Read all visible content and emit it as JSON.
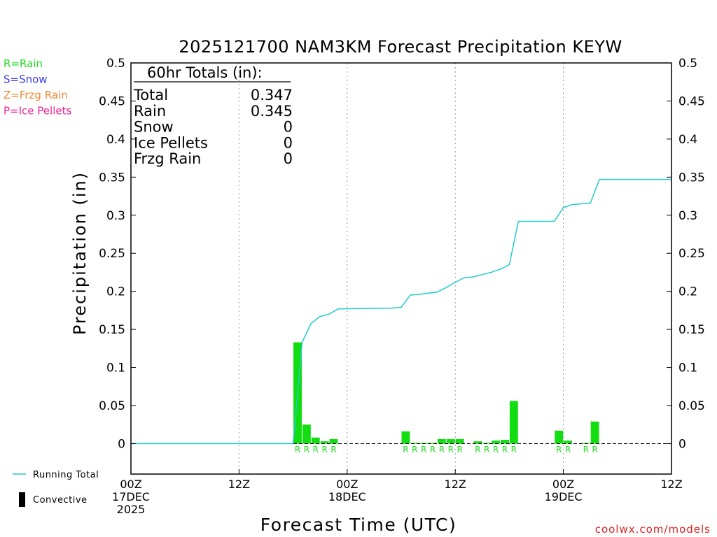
{
  "chart_data": {
    "type": "bar",
    "title": "2025121700 NAM3KM Forecast Precipitation KEYW",
    "xlabel": "Forecast Time (UTC)",
    "ylabel": "Precipitation (in)",
    "ylim": [
      -0.04,
      0.5
    ],
    "xlim_hours": [
      0,
      60
    ],
    "y_ticks": [
      "0",
      "0.05",
      "0.1",
      "0.15",
      "0.2",
      "0.25",
      "0.3",
      "0.35",
      "0.4",
      "0.45",
      "0.5"
    ],
    "y_tick_values": [
      0,
      0.05,
      0.1,
      0.15,
      0.2,
      0.25,
      0.3,
      0.35,
      0.4,
      0.45,
      0.5
    ],
    "x_ticks": [
      {
        "hour": 0,
        "lines": [
          "00Z",
          "17DEC",
          "2025"
        ]
      },
      {
        "hour": 12,
        "lines": [
          "12Z"
        ]
      },
      {
        "hour": 24,
        "lines": [
          "00Z",
          "18DEC"
        ]
      },
      {
        "hour": 36,
        "lines": [
          "12Z"
        ]
      },
      {
        "hour": 48,
        "lines": [
          "00Z",
          "19DEC"
        ]
      },
      {
        "hour": 60,
        "lines": [
          "12Z"
        ]
      }
    ],
    "grid_hours": [
      12,
      24,
      36,
      48
    ],
    "legend_types": [
      {
        "label": "R=Rain",
        "color": "#22dd22"
      },
      {
        "label": "S=Snow",
        "color": "#3a3aee"
      },
      {
        "label": "Z=Frzg Rain",
        "color": "#ee8833"
      },
      {
        "label": "P=Ice Pellets",
        "color": "#ee2299"
      }
    ],
    "legend_series": [
      {
        "label": "Running Total",
        "kind": "line",
        "color": "#22cccc"
      },
      {
        "label": "Convective",
        "kind": "bar",
        "color": "#000000"
      }
    ],
    "totals_box": {
      "heading": "60hr Totals (in):",
      "rows": [
        {
          "label": "Total",
          "value": "0.347"
        },
        {
          "label": "Rain",
          "value": "0.345"
        },
        {
          "label": "Snow",
          "value": "0"
        },
        {
          "label": "Ice Pellets",
          "value": "0"
        },
        {
          "label": "Frzg Rain",
          "value": "0"
        }
      ]
    },
    "bars": [
      {
        "hour": 19,
        "value": 0.133,
        "type": "R"
      },
      {
        "hour": 20,
        "value": 0.025,
        "type": "R"
      },
      {
        "hour": 21,
        "value": 0.008,
        "type": "R"
      },
      {
        "hour": 22,
        "value": 0.003,
        "type": "R"
      },
      {
        "hour": 23,
        "value": 0.006,
        "type": "R"
      },
      {
        "hour": 31,
        "value": 0.016,
        "type": "R"
      },
      {
        "hour": 32,
        "value": 0.001,
        "type": "R"
      },
      {
        "hour": 33,
        "value": 0.001,
        "type": "R"
      },
      {
        "hour": 34,
        "value": 0.001,
        "type": "R"
      },
      {
        "hour": 35,
        "value": 0.006,
        "type": "R"
      },
      {
        "hour": 36,
        "value": 0.006,
        "type": "R"
      },
      {
        "hour": 37,
        "value": 0.006,
        "type": "R"
      },
      {
        "hour": 39,
        "value": 0.003,
        "type": "R"
      },
      {
        "hour": 40,
        "value": 0.001,
        "type": "R"
      },
      {
        "hour": 41,
        "value": 0.004,
        "type": "R"
      },
      {
        "hour": 42,
        "value": 0.005,
        "type": "R"
      },
      {
        "hour": 43,
        "value": 0.056,
        "type": "R"
      },
      {
        "hour": 48,
        "value": 0.017,
        "type": "R"
      },
      {
        "hour": 49,
        "value": 0.004,
        "type": "R"
      },
      {
        "hour": 51,
        "value": 0.001,
        "type": "R"
      },
      {
        "hour": 52,
        "value": 0.029,
        "type": "R"
      }
    ],
    "running_total": [
      [
        0,
        0
      ],
      [
        18,
        0
      ],
      [
        19,
        0.133
      ],
      [
        20,
        0.158
      ],
      [
        21,
        0.167
      ],
      [
        22,
        0.17
      ],
      [
        23,
        0.177
      ],
      [
        29,
        0.178
      ],
      [
        30,
        0.179
      ],
      [
        31,
        0.195
      ],
      [
        32,
        0.196
      ],
      [
        34,
        0.199
      ],
      [
        35,
        0.205
      ],
      [
        36,
        0.212
      ],
      [
        37,
        0.218
      ],
      [
        38,
        0.219
      ],
      [
        39,
        0.222
      ],
      [
        40,
        0.225
      ],
      [
        41,
        0.229
      ],
      [
        42,
        0.235
      ],
      [
        43,
        0.292
      ],
      [
        47,
        0.292
      ],
      [
        48,
        0.31
      ],
      [
        49,
        0.314
      ],
      [
        51,
        0.316
      ],
      [
        52,
        0.347
      ],
      [
        60,
        0.347
      ]
    ],
    "colors": {
      "rain_bar": "#11dd11",
      "rain_label": "#22dd22",
      "running_total": "#22cccc",
      "credit": "#dd2222"
    }
  },
  "credit": "coolwx.com/models"
}
